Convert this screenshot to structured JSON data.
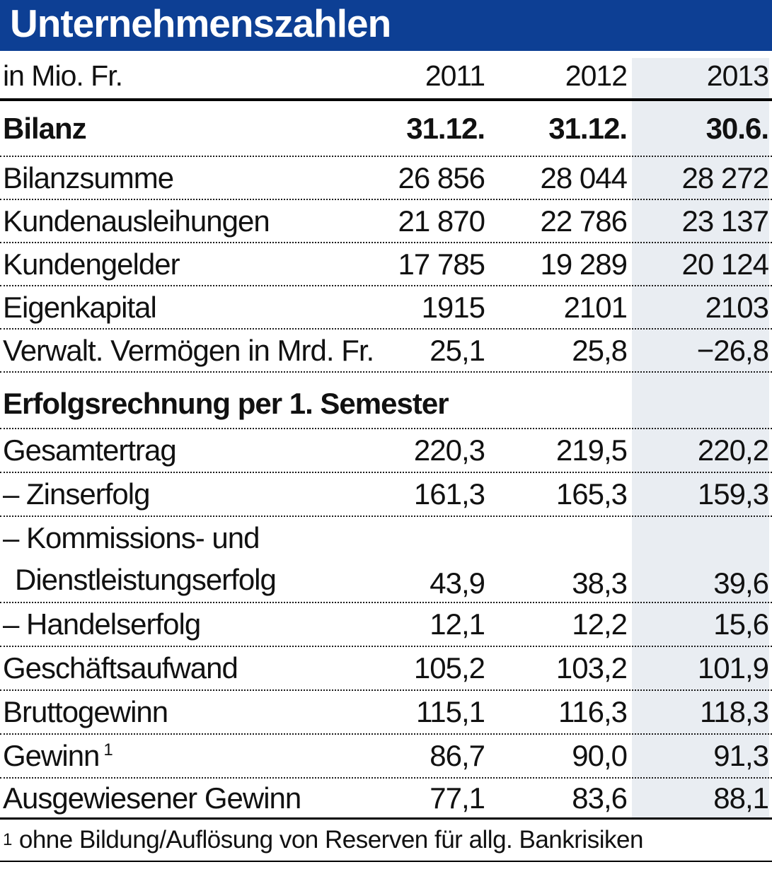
{
  "chart_data": {
    "type": "table",
    "title": "Unternehmenszahlen",
    "unit": "in Mio. Fr.",
    "columns": [
      "2011",
      "2012",
      "2013"
    ],
    "highlight_column": "2013",
    "colors": {
      "banner_blue": "#0d3f94",
      "highlight_band": "#e9edf2"
    },
    "sections": [
      {
        "label": "Bilanz",
        "header_values": [
          "31.12.",
          "31.12.",
          "30.6."
        ],
        "rows": [
          {
            "label": "Bilanzsumme",
            "values": [
              "26 856",
              "28 044",
              "28 272"
            ]
          },
          {
            "label": "Kundenausleihungen",
            "values": [
              "21 870",
              "22 786",
              "23 137"
            ]
          },
          {
            "label": "Kundengelder",
            "values": [
              "17 785",
              "19 289",
              "20 124"
            ]
          },
          {
            "label": "Eigenkapital",
            "values": [
              "1915",
              "2101",
              "2103"
            ]
          },
          {
            "label": "Verwalt. Vermögen in Mrd. Fr.",
            "values": [
              "25,1",
              "25,8",
              "−26,8"
            ]
          }
        ]
      },
      {
        "label": "Erfolgsrechnung per 1. Semester",
        "rows": [
          {
            "label": "Gesamtertrag",
            "values": [
              "220,3",
              "219,5",
              "220,2"
            ]
          },
          {
            "label": "– Zinserfolg",
            "values": [
              "161,3",
              "165,3",
              "159,3"
            ]
          },
          {
            "label_line1": "– Kommissions- und",
            "label_line2": "Dienstleistungserfolg",
            "values": [
              "43,9",
              "38,3",
              "39,6"
            ]
          },
          {
            "label": "– Handelserfolg",
            "values": [
              "12,1",
              "12,2",
              "15,6"
            ]
          },
          {
            "label": "Geschäftsaufwand",
            "values": [
              "105,2",
              "103,2",
              "101,9"
            ]
          },
          {
            "label": "Bruttogewinn",
            "values": [
              "115,1",
              "116,3",
              "118,3"
            ]
          },
          {
            "label": "Gewinn",
            "footnote_marker": "1",
            "values": [
              "86,7",
              "90,0",
              "91,3"
            ]
          },
          {
            "label": "Ausgewiesener Gewinn",
            "values": [
              "77,1",
              "83,6",
              "88,1"
            ]
          }
        ]
      }
    ],
    "footnote": {
      "marker": "1",
      "text": "ohne Bildung/Auflösung von Reserven für allg. Bankrisiken"
    }
  }
}
